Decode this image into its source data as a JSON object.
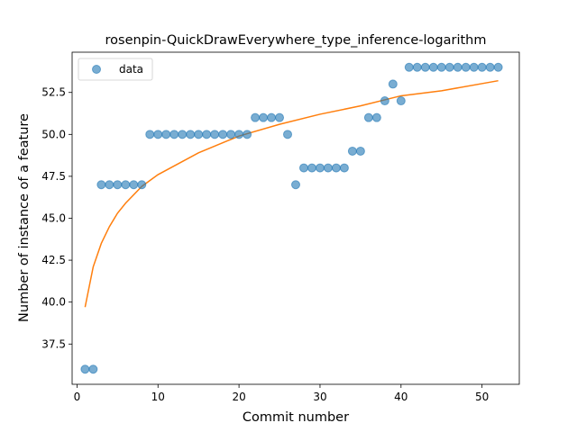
{
  "chart_data": {
    "type": "scatter",
    "title": "rosenpin-QuickDrawEverywhere_type_inference-logarithm",
    "xlabel": "Commit number",
    "ylabel": "Number of instance of a feature",
    "xlim": [
      -0.6,
      54.6
    ],
    "ylim": [
      35.1,
      54.9
    ],
    "xticks": [
      0,
      10,
      20,
      30,
      40,
      50
    ],
    "yticks": [
      37.5,
      40.0,
      42.5,
      45.0,
      47.5,
      50.0,
      52.5
    ],
    "ytick_labels": [
      "37.5",
      "40.0",
      "42.5",
      "45.0",
      "47.5",
      "50.0",
      "52.5"
    ],
    "legend": {
      "placement": "top-left",
      "entries": [
        "data"
      ]
    },
    "colors": {
      "points": "#1f77b4",
      "fit": "#ff7f0e"
    },
    "series": [
      {
        "name": "data",
        "kind": "points",
        "x": [
          1,
          2,
          3,
          4,
          5,
          6,
          7,
          8,
          9,
          10,
          11,
          12,
          13,
          14,
          15,
          16,
          17,
          18,
          19,
          20,
          21,
          22,
          23,
          24,
          25,
          26,
          27,
          28,
          29,
          30,
          31,
          32,
          33,
          34,
          35,
          36,
          37,
          38,
          39,
          40,
          41,
          42,
          43,
          44,
          45,
          46,
          47,
          48,
          49,
          50,
          51,
          52
        ],
        "y": [
          36,
          36,
          47,
          47,
          47,
          47,
          47,
          47,
          50,
          50,
          50,
          50,
          50,
          50,
          50,
          50,
          50,
          50,
          50,
          50,
          50,
          51,
          51,
          51,
          51,
          50,
          47,
          48,
          48,
          48,
          48,
          48,
          48,
          49,
          49,
          51,
          51,
          52,
          53,
          52,
          54,
          54,
          54,
          54,
          54,
          54,
          54,
          54,
          54,
          54,
          54,
          54
        ]
      },
      {
        "kind": "line",
        "x": [
          1,
          2,
          3,
          4,
          5,
          6,
          8,
          10,
          15,
          20,
          25,
          30,
          35,
          40,
          45,
          52
        ],
        "y": [
          39.7,
          42.1,
          43.5,
          44.5,
          45.3,
          45.9,
          46.9,
          47.6,
          48.9,
          49.9,
          50.6,
          51.2,
          51.7,
          52.3,
          52.6,
          53.2
        ]
      }
    ]
  }
}
